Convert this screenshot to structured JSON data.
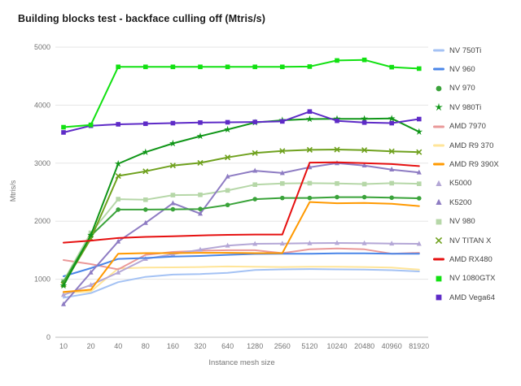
{
  "chart_data": {
    "type": "line",
    "title": "Building blocks test - backface culling off (Mtris/s)",
    "xlabel": "Instance mesh size",
    "ylabel": "Mtris/s",
    "categories": [
      "10",
      "20",
      "40",
      "80",
      "160",
      "320",
      "640",
      "1280",
      "2560",
      "5120",
      "10240",
      "20480",
      "40960",
      "81920"
    ],
    "ylim": [
      0,
      5000
    ],
    "yticks": [
      0,
      1000,
      2000,
      3000,
      4000,
      5000
    ],
    "grid": "horizontal",
    "legend_position": "right",
    "series": [
      {
        "name": "NV 750Ti",
        "color": "#a4c2f4",
        "marker": "none",
        "values": [
          680,
          760,
          950,
          1040,
          1080,
          1090,
          1110,
          1160,
          1170,
          1175,
          1170,
          1165,
          1155,
          1135
        ]
      },
      {
        "name": "NV 960",
        "color": "#4a86e8",
        "marker": "none",
        "values": [
          1050,
          1190,
          1350,
          1365,
          1390,
          1400,
          1420,
          1435,
          1440,
          1440,
          1445,
          1445,
          1440,
          1440
        ]
      },
      {
        "name": "NV 970",
        "color": "#3aa33a",
        "marker": "circle",
        "values": [
          950,
          1750,
          2200,
          2200,
          2205,
          2210,
          2280,
          2380,
          2400,
          2400,
          2415,
          2415,
          2405,
          2395
        ]
      },
      {
        "name": "NV 980Ti",
        "color": "#109618",
        "marker": "star",
        "values": [
          890,
          1760,
          2990,
          3190,
          3340,
          3465,
          3580,
          3700,
          3740,
          3760,
          3765,
          3765,
          3770,
          3540
        ]
      },
      {
        "name": "AMD 7970",
        "color": "#ea9999",
        "marker": "none",
        "values": [
          1330,
          1260,
          1170,
          1420,
          1470,
          1490,
          1500,
          1500,
          1450,
          1515,
          1530,
          1515,
          1440,
          1455
        ]
      },
      {
        "name": "AMD R9 370",
        "color": "#ffe599",
        "marker": "none",
        "values": [
          760,
          790,
          1185,
          1200,
          1205,
          1210,
          1220,
          1215,
          1210,
          1215,
          1215,
          1210,
          1200,
          1165
        ]
      },
      {
        "name": "AMD R9 390X",
        "color": "#ff9900",
        "marker": "none",
        "values": [
          780,
          820,
          1440,
          1450,
          1450,
          1455,
          1455,
          1450,
          1450,
          2330,
          2310,
          2315,
          2300,
          2260
        ]
      },
      {
        "name": "K5000",
        "color": "#b4a7d6",
        "marker": "triangle",
        "values": [
          730,
          900,
          1115,
          1350,
          1430,
          1510,
          1580,
          1610,
          1615,
          1620,
          1625,
          1620,
          1615,
          1610
        ]
      },
      {
        "name": "K5200",
        "color": "#8e7cc3",
        "marker": "triangle",
        "values": [
          570,
          1115,
          1650,
          1970,
          2310,
          2130,
          2770,
          2870,
          2830,
          2930,
          3000,
          2960,
          2890,
          2840
        ]
      },
      {
        "name": "NV 980",
        "color": "#b6d7a8",
        "marker": "square",
        "values": [
          970,
          1800,
          2380,
          2370,
          2450,
          2455,
          2530,
          2630,
          2650,
          2655,
          2650,
          2640,
          2655,
          2645
        ]
      },
      {
        "name": "NV TITAN X",
        "color": "#6fa11e",
        "marker": "xcross",
        "values": [
          910,
          1700,
          2780,
          2860,
          2960,
          3005,
          3100,
          3175,
          3210,
          3230,
          3235,
          3225,
          3205,
          3190
        ]
      },
      {
        "name": "AMD RX480",
        "color": "#e61010",
        "marker": "none",
        "values": [
          1630,
          1665,
          1710,
          1730,
          1740,
          1755,
          1765,
          1770,
          1770,
          3010,
          3015,
          3000,
          2985,
          2950
        ]
      },
      {
        "name": "NV 1080GTX",
        "color": "#12e112",
        "marker": "square",
        "values": [
          3620,
          3660,
          4660,
          4660,
          4660,
          4660,
          4660,
          4660,
          4660,
          4665,
          4770,
          4780,
          4655,
          4630
        ]
      },
      {
        "name": "AMD Vega64",
        "color": "#5e2bc7",
        "marker": "square",
        "values": [
          3530,
          3645,
          3670,
          3680,
          3690,
          3700,
          3705,
          3710,
          3720,
          3890,
          3730,
          3700,
          3690,
          3760
        ]
      }
    ]
  }
}
